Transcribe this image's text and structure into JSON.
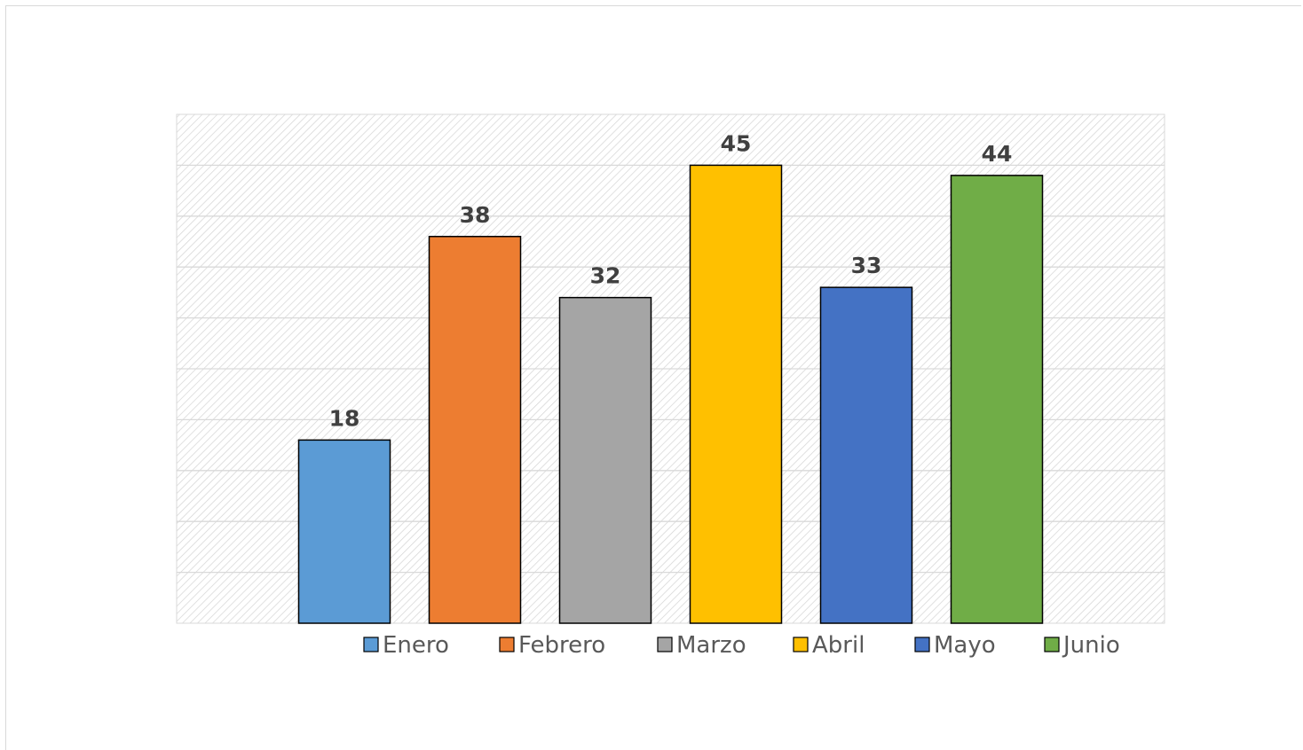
{
  "chart_data": {
    "type": "bar",
    "title": "",
    "xlabel": "",
    "ylabel": "",
    "ylim": [
      0,
      50
    ],
    "grid": true,
    "gridline_step": 5,
    "legend_position": "bottom",
    "categories": [
      "Enero",
      "Febrero",
      "Marzo",
      "Abril",
      "Mayo",
      "Junio"
    ],
    "values": [
      18,
      38,
      32,
      45,
      33,
      44
    ],
    "colors": [
      "#5b9bd5",
      "#ed7d31",
      "#a5a5a5",
      "#ffc000",
      "#4472c4",
      "#70ad47"
    ],
    "data_labels": [
      "18",
      "38",
      "32",
      "45",
      "33",
      "44"
    ]
  }
}
